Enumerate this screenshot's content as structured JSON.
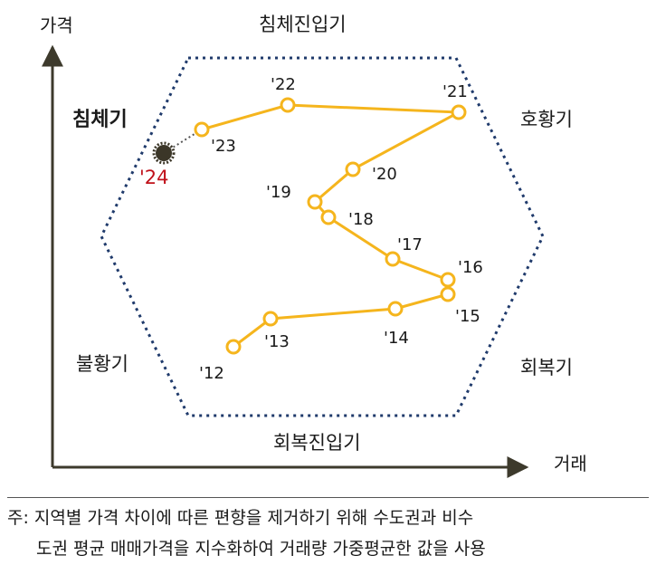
{
  "axes": {
    "y_label": "가격",
    "x_label": "거래"
  },
  "phases": {
    "top": "침체진입기",
    "bottom": "회복진입기",
    "left_upper": "침체기",
    "left_lower": "불황기",
    "right_upper": "호황기",
    "right_lower": "회복기"
  },
  "path_points": [
    {
      "year": "'12"
    },
    {
      "year": "'13"
    },
    {
      "year": "'14"
    },
    {
      "year": "'15"
    },
    {
      "year": "'16"
    },
    {
      "year": "'17"
    },
    {
      "year": "'18"
    },
    {
      "year": "'19"
    },
    {
      "year": "'20"
    },
    {
      "year": "'21"
    },
    {
      "year": "'22"
    },
    {
      "year": "'23"
    },
    {
      "year": "'24"
    }
  ],
  "colors": {
    "path": "#f5b51d",
    "hexagon": "#1f3a6b",
    "axis": "#3d3a2c",
    "highlight": "#c0121b"
  },
  "note": {
    "line1": "주: 지역별 가격 차이에 따른 편향을 제거하기 위해 수도권과 비수",
    "line2": "도권 평균 매매가격을 지수화하여 거래량 가중평균한 값을 사용"
  }
}
